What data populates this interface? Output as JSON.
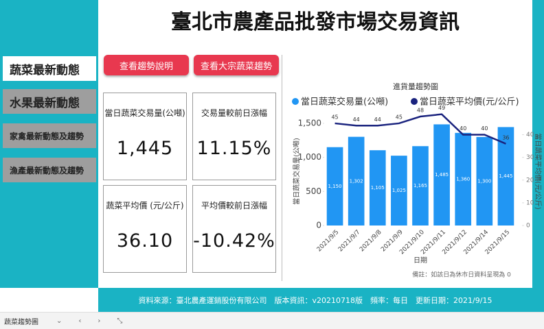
{
  "header": {
    "title": "臺北市農產品批發市場交易資訊"
  },
  "nav": [
    "蔬菜最新動態",
    "水果最新動態",
    "家禽最新動態及趨勢",
    "漁產最新動態及趨勢"
  ],
  "buttons": [
    "查看趨勢說明",
    "查看大宗蔬菜趨勢"
  ],
  "cards": [
    {
      "label": "當日蔬菜交易量(公噸)",
      "value": "1,445"
    },
    {
      "label": "交易量較前日漲幅",
      "value": "11.15%"
    },
    {
      "label": "蔬菜平均價 (元/公斤)",
      "value": "36.10"
    },
    {
      "label": "平均價較前日漲幅",
      "value": "-10.42%"
    }
  ],
  "chart_data": {
    "type": "bar-line",
    "title": "進貨量趨勢圖",
    "categories": [
      "2021/9/5",
      "2021/9/7",
      "2021/9/8",
      "2021/9/9",
      "2021/9/10",
      "2021/9/11",
      "2021/9/12",
      "2021/9/14",
      "2021/9/15"
    ],
    "series": [
      {
        "name": "當日蔬菜交易量(公噸)",
        "type": "bar",
        "color": "#2196f3",
        "values": [
          1150,
          1302,
          1105,
          1025,
          1165,
          1485,
          1360,
          1300,
          1445
        ],
        "value_labels": [
          "1,150",
          "1,302",
          "1,105",
          "1,025",
          "1,165",
          "1,485",
          "1,360",
          "1,300",
          "1,445"
        ]
      },
      {
        "name": "當日蔬菜平均價(元/公斤)",
        "type": "line",
        "axis": "y2",
        "color": "#1a237e",
        "values": [
          45,
          44,
          44,
          45,
          48,
          49,
          40,
          40,
          36
        ]
      }
    ],
    "x_label": "日期",
    "y_label": "當日蔬菜交易量(公噸)",
    "y2_label": "當日蔬菜平均價(元/公斤)",
    "ylim": [
      0,
      1600
    ],
    "yticks": [
      0,
      500,
      {
        "value": 1000,
        "label": "1,000"
      },
      {
        "value": 1500,
        "label": "1,500"
      }
    ],
    "y2lim": [
      0,
      48
    ],
    "y2ticks": [
      0,
      10,
      20,
      30,
      40
    ],
    "note": "備註：如該日為休市日資料呈現為 0"
  },
  "footer": "資料來源：臺北農產運銷股份有限公司　版本資訊：v20210718版　頻率：每日　更新日期：2021/9/15",
  "tab": "蔬菜趨勢圖"
}
